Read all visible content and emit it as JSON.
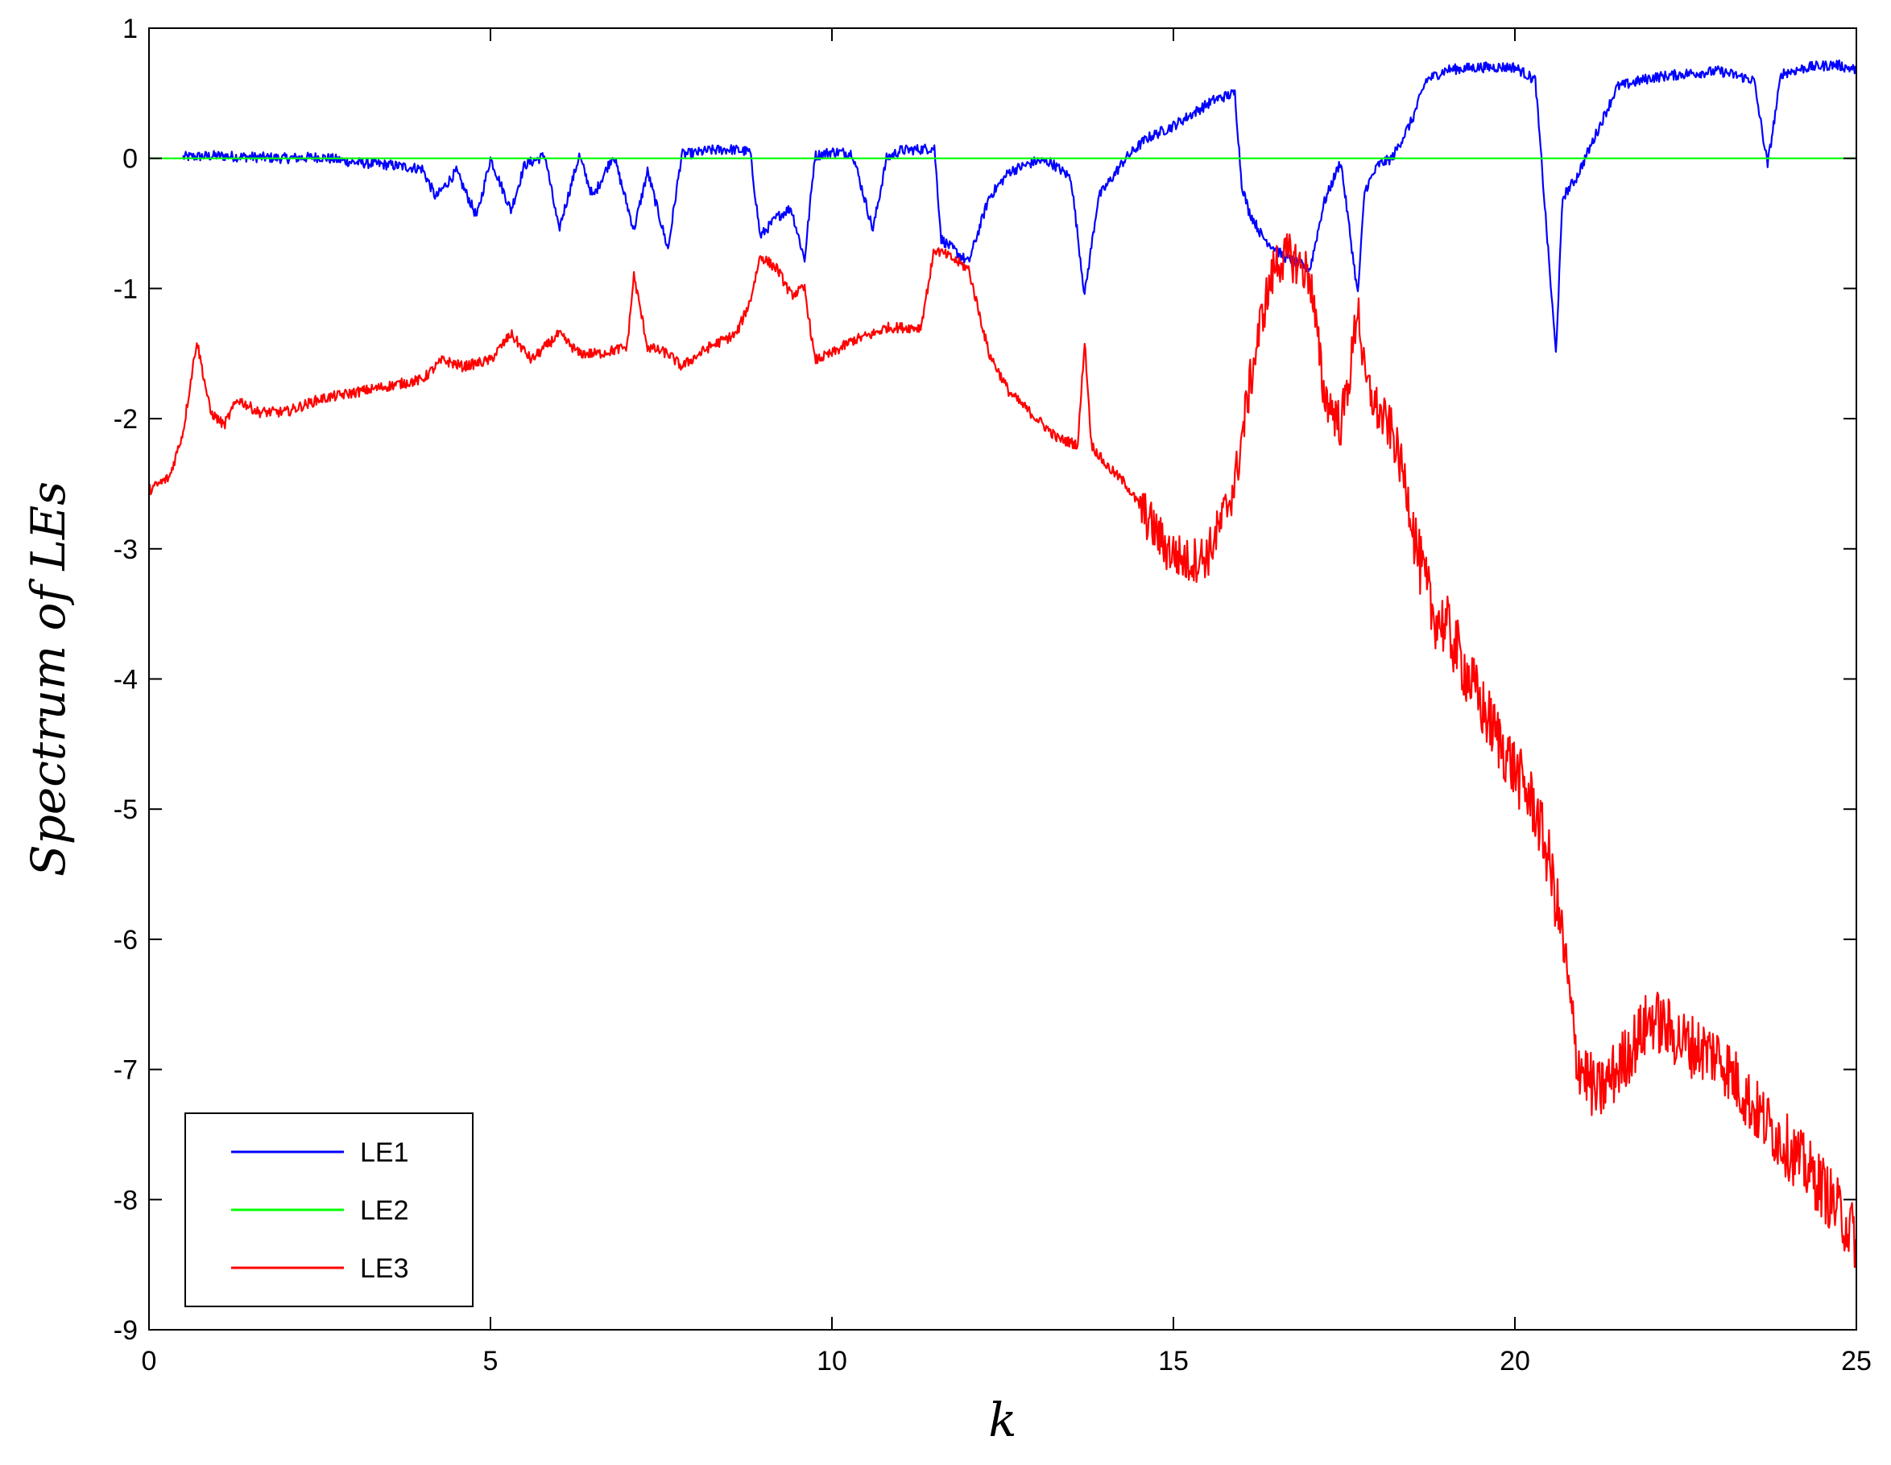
{
  "chart_data": {
    "type": "line",
    "title": "",
    "xlabel": "k",
    "ylabel": "Spectrum of LEs",
    "xlim": [
      0,
      25
    ],
    "ylim": [
      -9,
      1
    ],
    "xticks": [
      0,
      5,
      10,
      15,
      20,
      25
    ],
    "yticks": [
      -9,
      -8,
      -7,
      -6,
      -5,
      -4,
      -3,
      -2,
      -1,
      0,
      1
    ],
    "grid": false,
    "legend_position": "bottom-left",
    "series": [
      {
        "name": "LE1",
        "color": "#0000ff",
        "x": [
          0.5,
          1,
          1.5,
          2,
          2.5,
          3,
          3.5,
          4,
          4.2,
          4.5,
          4.8,
          5,
          5.3,
          5.5,
          5.8,
          6,
          6.3,
          6.5,
          6.8,
          7.1,
          7.3,
          7.6,
          7.8,
          8,
          8.2,
          8.5,
          8.8,
          8.95,
          9.2,
          9.4,
          9.6,
          9.75,
          10,
          10.3,
          10.6,
          10.8,
          11,
          11.3,
          11.5,
          11.6,
          12,
          12.3,
          12.6,
          13,
          13.2,
          13.5,
          13.7,
          13.9,
          14.1,
          14.3,
          14.6,
          15,
          15.3,
          15.6,
          15.9,
          16.0,
          16.1,
          16.3,
          16.6,
          16.8,
          17.0,
          17.2,
          17.45,
          17.7,
          17.8,
          18.0,
          18.2,
          18.5,
          18.7,
          19,
          19.5,
          20,
          20.3,
          20.6,
          20.7,
          20.9,
          21.2,
          21.5,
          22,
          22.5,
          23,
          23.5,
          23.7,
          23.9,
          24.3,
          24.7,
          25
        ],
        "y": [
          0.01,
          0.02,
          0.01,
          0.0,
          0.01,
          -0.03,
          -0.05,
          -0.08,
          -0.3,
          -0.1,
          -0.45,
          0.0,
          -0.4,
          -0.05,
          0.02,
          -0.55,
          0.02,
          -0.3,
          0.03,
          -0.55,
          -0.1,
          -0.7,
          0.03,
          0.04,
          0.06,
          0.07,
          0.05,
          -0.6,
          -0.45,
          -0.38,
          -0.78,
          0.02,
          0.05,
          0.04,
          -0.55,
          0.0,
          0.06,
          0.07,
          0.08,
          -0.62,
          -0.8,
          -0.3,
          -0.1,
          -0.02,
          -0.03,
          -0.15,
          -1.05,
          -0.3,
          -0.15,
          0.0,
          0.15,
          0.25,
          0.35,
          0.45,
          0.5,
          -0.2,
          -0.4,
          -0.6,
          -0.75,
          -0.8,
          -0.85,
          -0.35,
          -0.02,
          -1.05,
          -0.25,
          -0.05,
          0.0,
          0.3,
          0.6,
          0.68,
          0.7,
          0.7,
          0.6,
          -1.5,
          -0.3,
          -0.15,
          0.2,
          0.55,
          0.62,
          0.65,
          0.67,
          0.6,
          -0.05,
          0.65,
          0.7,
          0.72,
          0.68
        ]
      },
      {
        "name": "LE2",
        "color": "#00ff00",
        "x": [
          0,
          25
        ],
        "y": [
          0,
          0
        ]
      },
      {
        "name": "LE3",
        "color": "#ff0000",
        "x": [
          0,
          0.3,
          0.5,
          0.7,
          0.9,
          1.1,
          1.3,
          1.6,
          2,
          2.5,
          3,
          3.5,
          4,
          4.3,
          4.6,
          5,
          5.3,
          5.6,
          6,
          6.3,
          6.6,
          7,
          7.1,
          7.3,
          7.6,
          7.8,
          8.2,
          8.6,
          8.8,
          8.95,
          9.2,
          9.4,
          9.6,
          9.75,
          10,
          10.3,
          10.6,
          10.8,
          11,
          11.3,
          11.5,
          11.7,
          12,
          12.3,
          12.6,
          13,
          13.3,
          13.6,
          13.7,
          13.8,
          14,
          14.3,
          14.6,
          14.9,
          15.2,
          15.5,
          15.7,
          15.9,
          16.1,
          16.3,
          16.5,
          16.7,
          17,
          17.2,
          17.45,
          17.6,
          17.7,
          17.8,
          18.0,
          18.2,
          18.4,
          18.6,
          18.8,
          19,
          19.5,
          20,
          20.3,
          20.5,
          20.7,
          20.9,
          21.2,
          21.5,
          22,
          22.5,
          23,
          23.5,
          24,
          24.5,
          25
        ],
        "y": [
          -2.55,
          -2.45,
          -2.1,
          -1.4,
          -1.95,
          -2.05,
          -1.85,
          -1.95,
          -1.95,
          -1.85,
          -1.8,
          -1.75,
          -1.7,
          -1.55,
          -1.6,
          -1.55,
          -1.35,
          -1.55,
          -1.35,
          -1.5,
          -1.5,
          -1.45,
          -0.9,
          -1.45,
          -1.5,
          -1.6,
          -1.45,
          -1.35,
          -1.1,
          -0.75,
          -0.85,
          -1.05,
          -1.0,
          -1.55,
          -1.5,
          -1.4,
          -1.35,
          -1.3,
          -1.3,
          -1.3,
          -0.7,
          -0.75,
          -0.85,
          -1.5,
          -1.8,
          -2.0,
          -2.15,
          -2.2,
          -1.4,
          -2.2,
          -2.35,
          -2.5,
          -2.75,
          -3.0,
          -3.1,
          -3.05,
          -2.8,
          -2.5,
          -1.8,
          -1.2,
          -0.8,
          -0.75,
          -0.9,
          -1.8,
          -2.05,
          -1.6,
          -1.1,
          -1.7,
          -1.95,
          -2.1,
          -2.5,
          -3.1,
          -3.5,
          -3.6,
          -4.2,
          -4.7,
          -5.0,
          -5.4,
          -6.0,
          -6.9,
          -7.2,
          -7.0,
          -6.6,
          -6.8,
          -6.9,
          -7.3,
          -7.6,
          -7.9,
          -8.3
        ]
      }
    ]
  }
}
